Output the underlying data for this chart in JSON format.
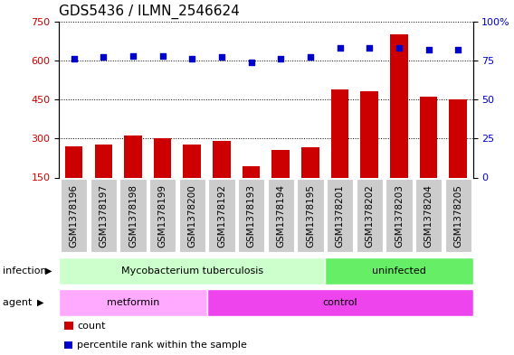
{
  "title": "GDS5436 / ILMN_2546624",
  "samples": [
    "GSM1378196",
    "GSM1378197",
    "GSM1378198",
    "GSM1378199",
    "GSM1378200",
    "GSM1378192",
    "GSM1378193",
    "GSM1378194",
    "GSM1378195",
    "GSM1378201",
    "GSM1378202",
    "GSM1378203",
    "GSM1378204",
    "GSM1378205"
  ],
  "counts": [
    270,
    275,
    310,
    300,
    275,
    290,
    195,
    255,
    265,
    490,
    480,
    700,
    460,
    450
  ],
  "percentiles": [
    76,
    77,
    78,
    78,
    76,
    77,
    74,
    76,
    77,
    83,
    83,
    83,
    82,
    82
  ],
  "ylim_left": [
    150,
    750
  ],
  "ylim_right": [
    0,
    100
  ],
  "yticks_left": [
    150,
    300,
    450,
    600,
    750
  ],
  "yticks_right": [
    0,
    25,
    50,
    75,
    100
  ],
  "bar_color": "#cc0000",
  "dot_color": "#0000cc",
  "tick_bg_color": "#cccccc",
  "infection_groups": [
    {
      "label": "Mycobacterium tuberculosis",
      "span": [
        0,
        9
      ],
      "color": "#ccffcc"
    },
    {
      "label": "uninfected",
      "span": [
        9,
        14
      ],
      "color": "#66ee66"
    }
  ],
  "agent_groups": [
    {
      "label": "metformin",
      "span": [
        0,
        5
      ],
      "color": "#ffaaff"
    },
    {
      "label": "control",
      "span": [
        5,
        14
      ],
      "color": "#ee44ee"
    }
  ],
  "infection_label": "infection",
  "agent_label": "agent",
  "legend_count_label": "count",
  "legend_percentile_label": "percentile rank within the sample",
  "plot_bg_color": "#ffffff",
  "title_fontsize": 11,
  "tick_fontsize": 7.5
}
